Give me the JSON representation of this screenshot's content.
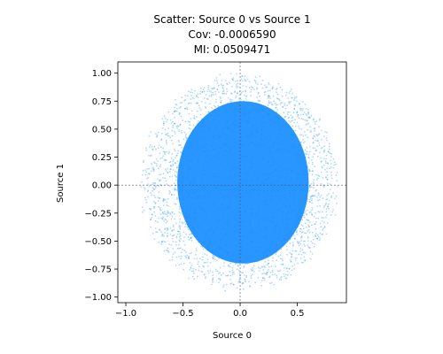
{
  "chart_data": {
    "type": "scatter",
    "title_lines": [
      "Scatter: Source 0 vs Source 1",
      "Cov: -0.0006590",
      "MI: 0.0509471"
    ],
    "xlabel": "Source 0",
    "ylabel": "Source 1",
    "xlim": [
      -1.07,
      0.93
    ],
    "ylim": [
      -1.05,
      1.1
    ],
    "xticks": [
      -1.0,
      -0.5,
      0.0,
      0.5
    ],
    "xtick_labels": [
      "−1.0",
      "−0.5",
      "0.0",
      "0.5"
    ],
    "yticks": [
      -1.0,
      -0.75,
      -0.5,
      -0.25,
      0.0,
      0.25,
      0.5,
      0.75,
      1.0
    ],
    "ytick_labels": [
      "−1.00",
      "−0.75",
      "−0.50",
      "−0.25",
      "0.00",
      "0.25",
      "0.50",
      "0.75",
      "1.00"
    ],
    "reference_lines": {
      "x": 0,
      "y": 0,
      "style": "dashed"
    },
    "grid": false,
    "marker_color": "#1e90ff",
    "point_cloud": {
      "x_range": [
        -1.0,
        0.85
      ],
      "y_range": [
        -0.95,
        1.0
      ],
      "dense_core": {
        "x": [
          -0.55,
          0.6
        ],
        "y": [
          -0.7,
          0.75
        ]
      }
    }
  }
}
